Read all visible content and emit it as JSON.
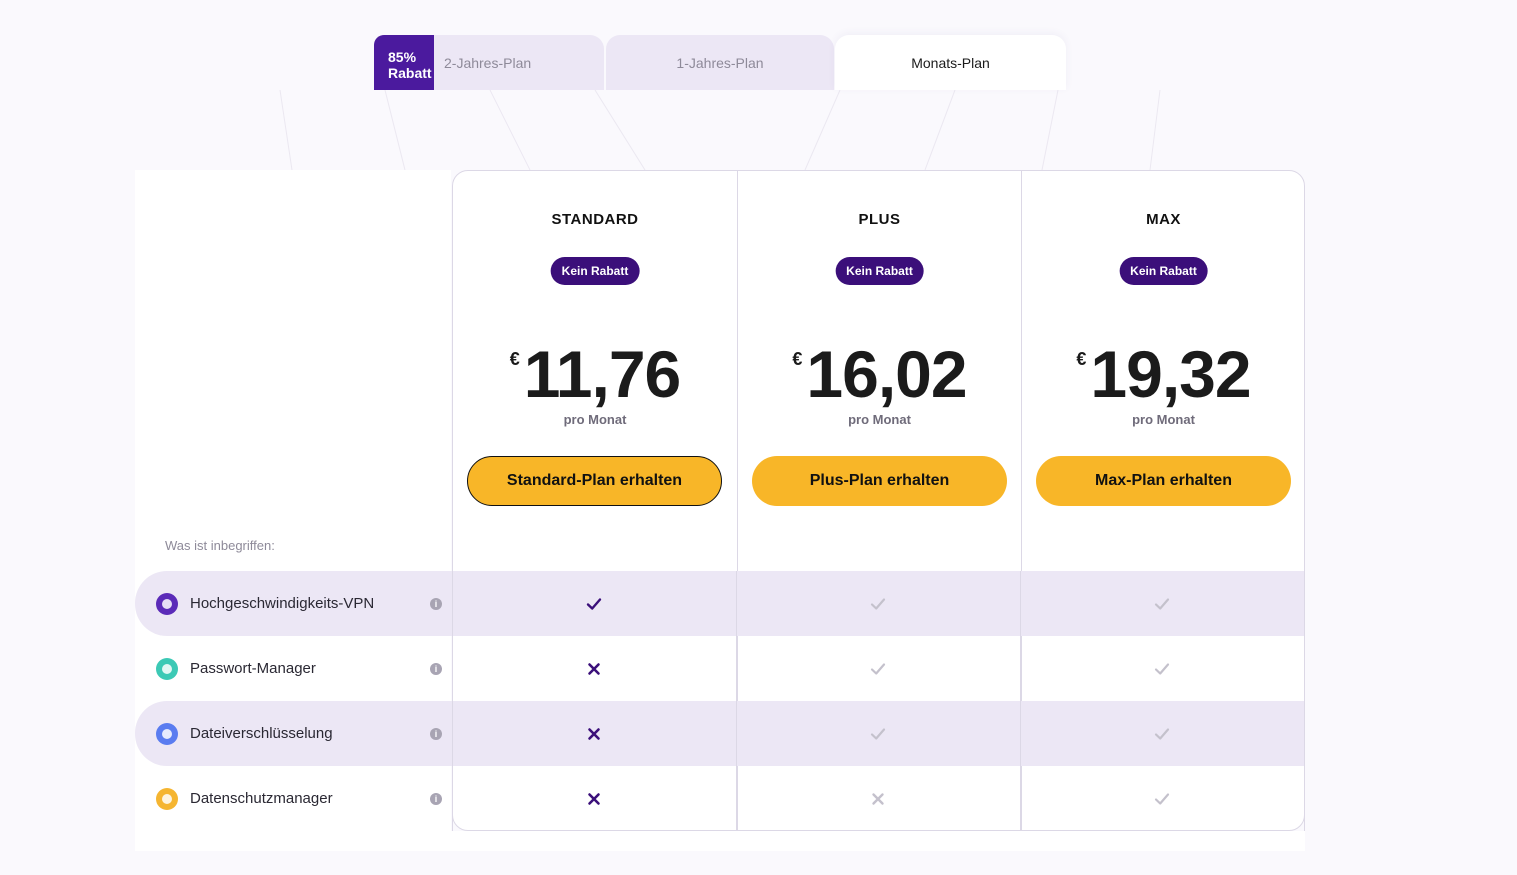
{
  "tabs": {
    "discount_badge": "85% Rabatt",
    "items": [
      {
        "label": "2-Jahres-Plan",
        "active": false
      },
      {
        "label": "1-Jahres-Plan",
        "active": false
      },
      {
        "label": "Monats-Plan",
        "active": true
      }
    ]
  },
  "plans": [
    {
      "name": "STANDARD",
      "badge": "Kein Rabatt",
      "currency": "€",
      "price": "11,76",
      "period": "pro Monat",
      "cta": "Standard-Plan erhalten",
      "selected": true
    },
    {
      "name": "PLUS",
      "badge": "Kein Rabatt",
      "currency": "€",
      "price": "16,02",
      "period": "pro Monat",
      "cta": "Plus-Plan erhalten",
      "selected": false
    },
    {
      "name": "MAX",
      "badge": "Kein Rabatt",
      "currency": "€",
      "price": "19,32",
      "period": "pro Monat",
      "cta": "Max-Plan erhalten",
      "selected": false
    }
  ],
  "included_label": "Was ist inbegriffen:",
  "features": [
    {
      "label": "Hochgeschwindigkeits-VPN",
      "icon": "vpn-shield-icon",
      "icon_color": "#5b2bb8",
      "shaded": true,
      "marks": [
        "check-dark",
        "check-light",
        "check-light"
      ]
    },
    {
      "label": "Passwort-Manager",
      "icon": "password-manager-icon",
      "icon_color": "#3cc9b5",
      "shaded": false,
      "marks": [
        "cross-dark",
        "check-light",
        "check-light"
      ]
    },
    {
      "label": "Dateiverschlüsselung",
      "icon": "file-encryption-icon",
      "icon_color": "#5a7cf0",
      "shaded": true,
      "marks": [
        "cross-dark",
        "check-light",
        "check-light"
      ]
    },
    {
      "label": "Datenschutzmanager",
      "icon": "privacy-manager-icon",
      "icon_color": "#f5b531",
      "shaded": false,
      "marks": [
        "cross-dark",
        "cross-light",
        "check-light"
      ]
    }
  ],
  "colors": {
    "accent_purple": "#3b0f7a",
    "cta_yellow": "#f8b628",
    "row_shade": "#ece7f5"
  }
}
